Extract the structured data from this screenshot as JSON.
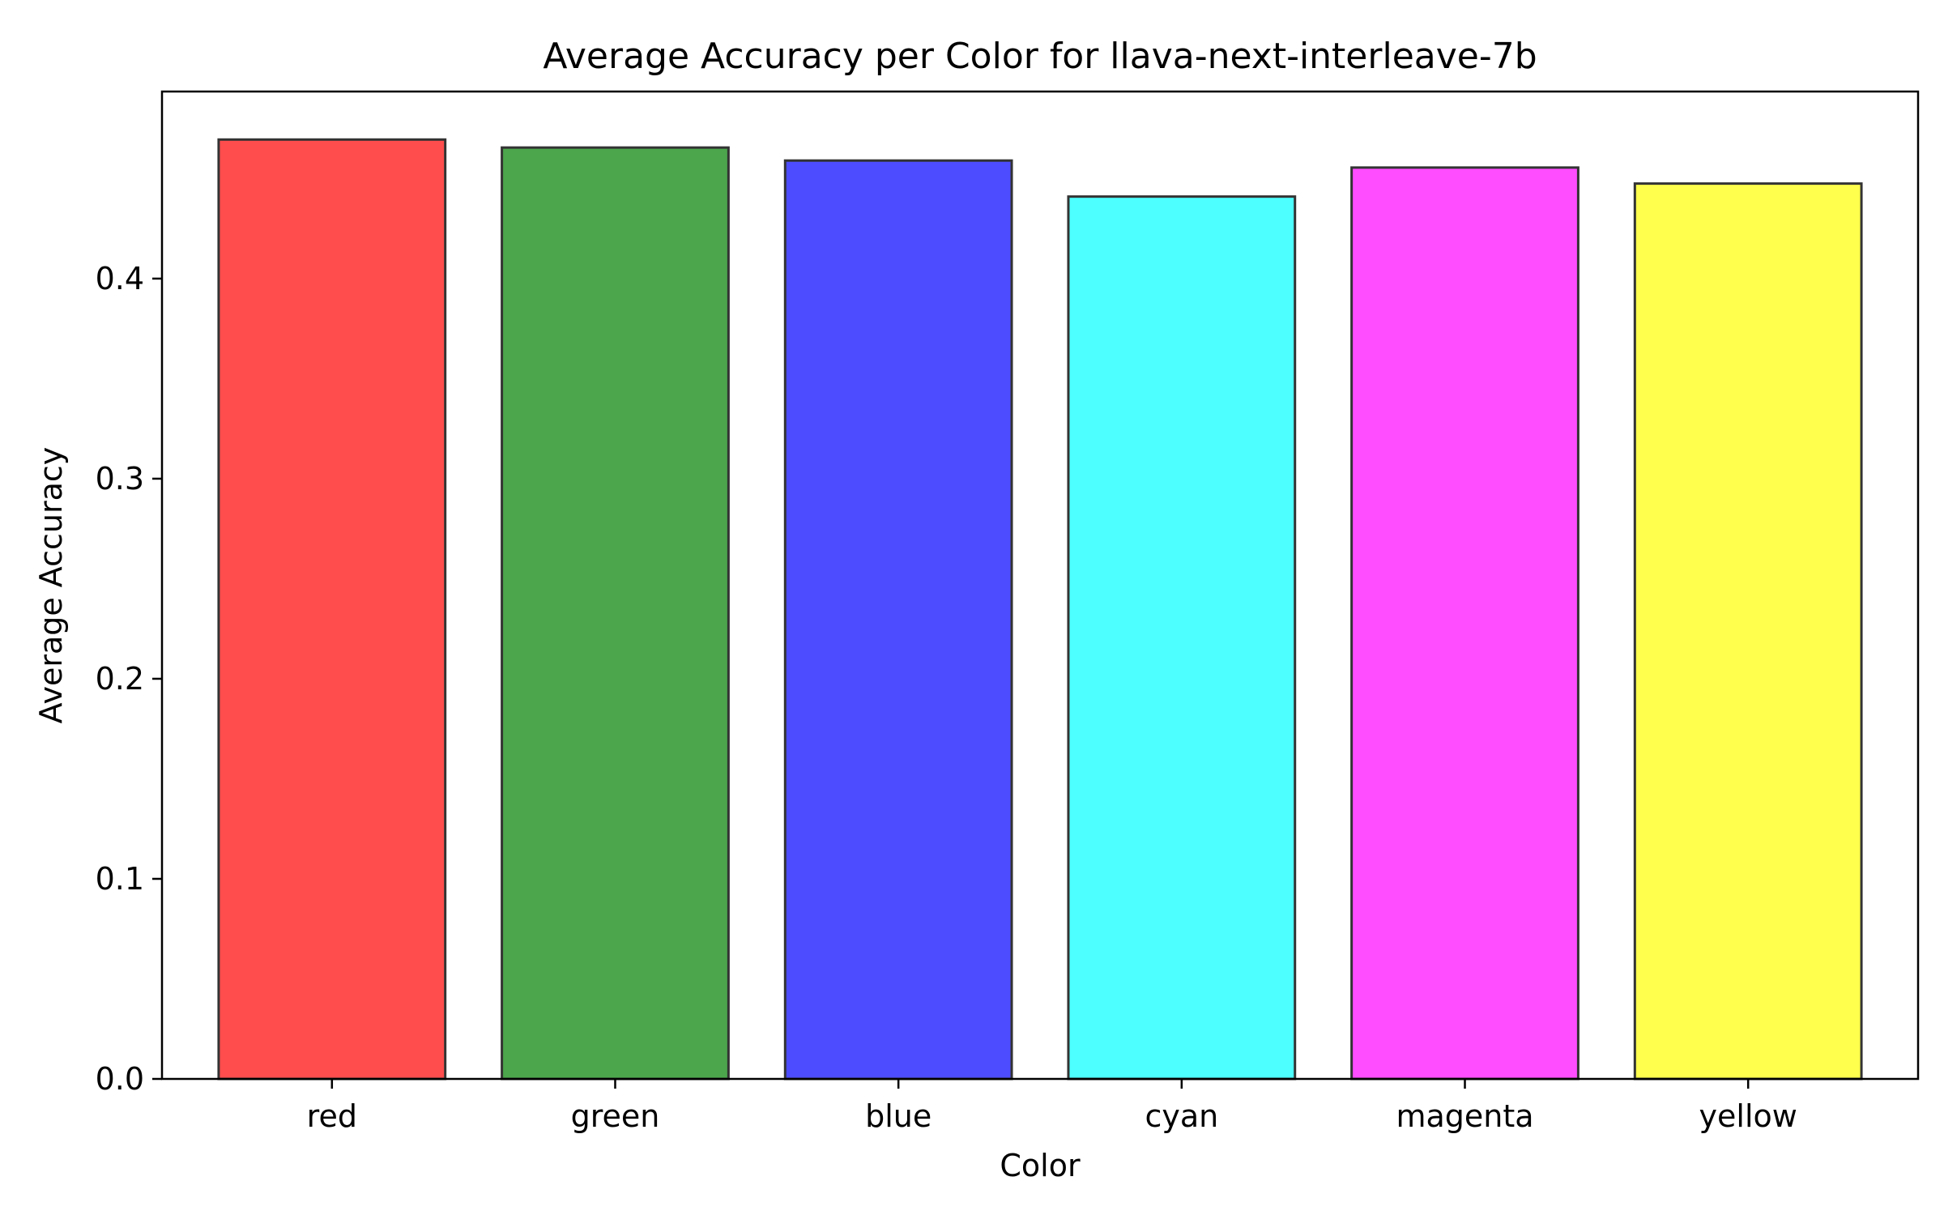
{
  "chart_data": {
    "type": "bar",
    "title": "Average Accuracy per Color for llava-next-interleave-7b",
    "xlabel": "Color",
    "ylabel": "Average Accuracy",
    "categories": [
      "red",
      "green",
      "blue",
      "cyan",
      "magenta",
      "yellow"
    ],
    "values": [
      0.4695,
      0.4655,
      0.459,
      0.441,
      0.4555,
      0.4475
    ],
    "colors": [
      "#ff4d4d",
      "#4ca64c",
      "#4d4dff",
      "#4dffff",
      "#ff4dff",
      "#ffff4d"
    ],
    "edge_color": "#333333",
    "ylim": [
      0,
      0.4935
    ],
    "yticks": [
      0.0,
      0.1,
      0.2,
      0.3,
      0.4
    ],
    "ytick_labels": [
      "0.0",
      "0.1",
      "0.2",
      "0.3",
      "0.4"
    ],
    "grid": false,
    "legend": false
  }
}
